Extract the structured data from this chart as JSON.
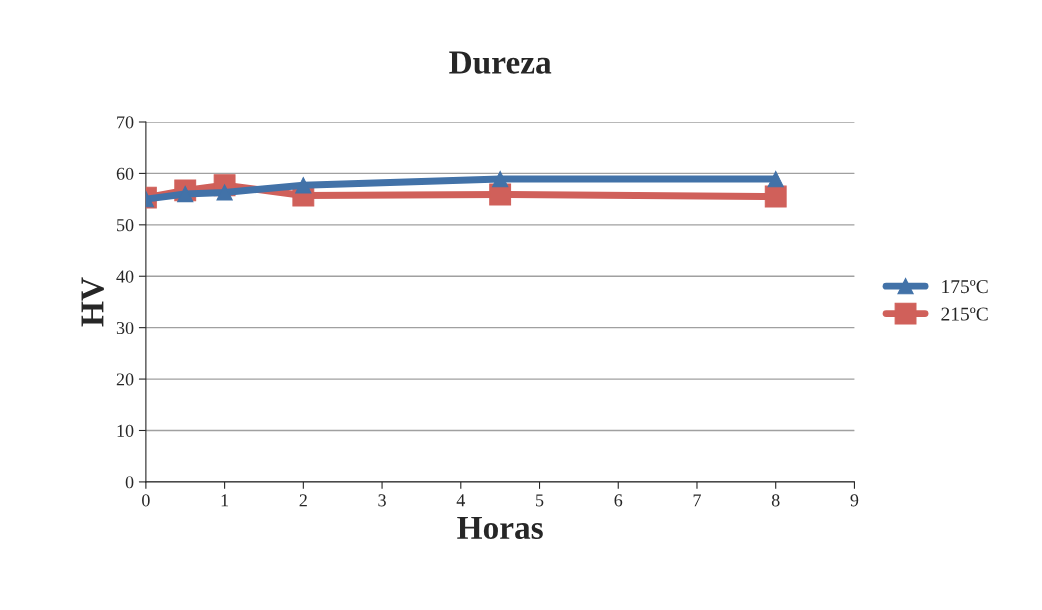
{
  "chart_data": {
    "type": "line",
    "title": "Dureza",
    "xlabel": "Horas",
    "ylabel": "HV",
    "x": [
      0,
      0.5,
      1,
      2,
      4.5,
      8
    ],
    "series": [
      {
        "name": "175ºC",
        "color": "#4272a8",
        "marker": "triangle",
        "values": [
          55,
          56,
          56.3,
          57.7,
          58.9,
          58.9
        ]
      },
      {
        "name": "215ºC",
        "color": "#d0605a",
        "marker": "square",
        "values": [
          55.3,
          56.7,
          57.7,
          55.7,
          55.9,
          55.5
        ]
      }
    ],
    "xlim": [
      0,
      9
    ],
    "xticks": [
      0,
      1,
      2,
      3,
      4,
      5,
      6,
      7,
      8,
      9
    ],
    "ylim": [
      0,
      70
    ],
    "yticks": [
      0,
      10,
      20,
      30,
      40,
      50,
      60,
      70
    ],
    "grid": "y",
    "legend": "right"
  }
}
